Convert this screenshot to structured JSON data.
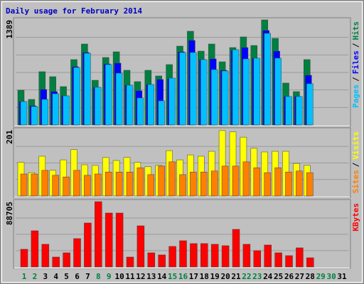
{
  "chart_data": [
    {
      "type": "bar",
      "title": "Daily usage for February 2014",
      "ylim": [
        0,
        1389
      ],
      "yticks": [
        1389
      ],
      "legend_separator": "/",
      "series": [
        {
          "name": "Pages",
          "color": "#00c0ff",
          "values": [
            310,
            244,
            338,
            413,
            385,
            760,
            948,
            498,
            798,
            685,
            526,
            357,
            535,
            319,
            620,
            958,
            958,
            864,
            732,
            714,
            995,
            873,
            883,
            1211,
            883,
            376,
            376,
            545,
            0,
            0,
            0
          ]
        },
        {
          "name": "Files",
          "color": "#0000ff",
          "values": [
            310,
            253,
            469,
            441,
            385,
            770,
            958,
            498,
            807,
            817,
            526,
            451,
            535,
            601,
            610,
            967,
            1117,
            864,
            873,
            723,
            986,
            1023,
            883,
            1249,
            976,
            376,
            376,
            657,
            0,
            0,
            0
          ]
        },
        {
          "name": "Hits",
          "color": "#008040",
          "values": [
            460,
            338,
            704,
            638,
            507,
            864,
            1070,
            591,
            892,
            967,
            723,
            573,
            723,
            648,
            798,
            1042,
            1239,
            976,
            1070,
            835,
            1023,
            1164,
            1051,
            1389,
            1145,
            554,
            441,
            864,
            0,
            0,
            0
          ]
        }
      ]
    },
    {
      "type": "bar",
      "ylim": [
        0,
        201
      ],
      "yticks": [
        201
      ],
      "legend_separator": "/",
      "series": [
        {
          "name": "Sites",
          "color": "#ff8000",
          "values": [
            67,
            67,
            78,
            63,
            58,
            78,
            63,
            67,
            73,
            73,
            73,
            86,
            65,
            91,
            104,
            65,
            73,
            73,
            76,
            91,
            91,
            104,
            86,
            71,
            86,
            73,
            76,
            71,
            0,
            0,
            0
          ]
        },
        {
          "name": "Visits",
          "color": "#ffff00",
          "values": [
            102,
            71,
            121,
            78,
            110,
            141,
            95,
            93,
            117,
            108,
            117,
            102,
            89,
            93,
            138,
            110,
            125,
            121,
            136,
            199,
            195,
            179,
            145,
            134,
            136,
            136,
            99,
            93,
            0,
            0,
            0
          ]
        }
      ]
    },
    {
      "type": "bar",
      "ylim": [
        0,
        88705
      ],
      "yticks": [
        88705
      ],
      "categories": [
        "1",
        "2",
        "3",
        "4",
        "5",
        "6",
        "7",
        "8",
        "9",
        "10",
        "11",
        "12",
        "13",
        "14",
        "15",
        "16",
        "17",
        "18",
        "19",
        "20",
        "21",
        "22",
        "23",
        "24",
        "25",
        "26",
        "27",
        "28",
        "29",
        "30",
        "31"
      ],
      "category_colors": [
        "#008040",
        "#008040",
        "#000000",
        "#000000",
        "#000000",
        "#000000",
        "#000000",
        "#008040",
        "#008040",
        "#000000",
        "#000000",
        "#000000",
        "#000000",
        "#000000",
        "#008040",
        "#008040",
        "#000000",
        "#000000",
        "#000000",
        "#000000",
        "#000000",
        "#008040",
        "#008040",
        "#000000",
        "#000000",
        "#000000",
        "#000000",
        "#000000",
        "#008040",
        "#008040",
        "#000000"
      ],
      "series": [
        {
          "name": "KBytes",
          "color": "#ff0000",
          "values": [
            24105,
            49180,
            30855,
            13499,
            19284,
            38567,
            59780,
            88705,
            73278,
            73278,
            13499,
            55923,
            19284,
            16391,
            27962,
            35675,
            31818,
            31818,
            30855,
            28926,
            51108,
            30855,
            22177,
            29891,
            19284,
            15427,
            26034,
            12535,
            0,
            0,
            0
          ]
        }
      ]
    }
  ]
}
